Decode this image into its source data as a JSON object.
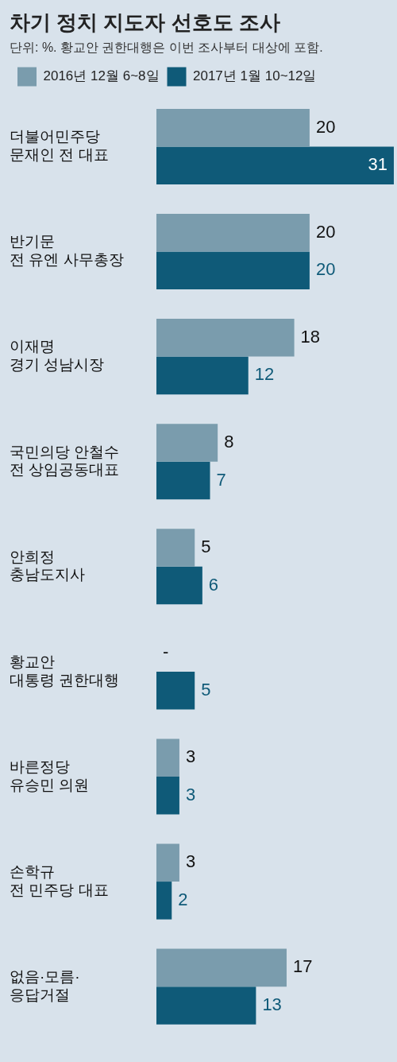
{
  "chart_data": {
    "type": "bar",
    "orientation": "horizontal",
    "title": "차기 정치 지도자 선호도 조사",
    "subtitle": "단위: %. 황교안 권한대행은 이번 조사부터 대상에 포함.",
    "categories": [
      "더불어민주당\n문재인 전 대표",
      "반기문\n전 유엔 사무총장",
      "이재명\n경기 성남시장",
      "국민의당 안철수\n전 상임공동대표",
      "안희정\n충남도지사",
      "황교안\n대통령 권한대행",
      "바른정당\n유승민 의원",
      "손학규\n전 민주당 대표",
      "없음·모름·\n응답거절"
    ],
    "series": [
      {
        "name": "2016년 12월 6~8일",
        "color": "#7a9cad",
        "values": [
          20,
          20,
          18,
          8,
          5,
          null,
          3,
          3,
          17
        ],
        "value_labels": [
          "20",
          "20",
          "18",
          "8",
          "5",
          "-",
          "3",
          "3",
          "17"
        ]
      },
      {
        "name": "2017년 1월 10~12일",
        "color": "#0f5a78",
        "values": [
          31,
          20,
          12,
          7,
          6,
          5,
          3,
          2,
          13
        ],
        "value_labels": [
          "31",
          "20",
          "12",
          "7",
          "6",
          "5",
          "3",
          "2",
          "13"
        ]
      }
    ],
    "legend": "top left",
    "grid": false
  }
}
